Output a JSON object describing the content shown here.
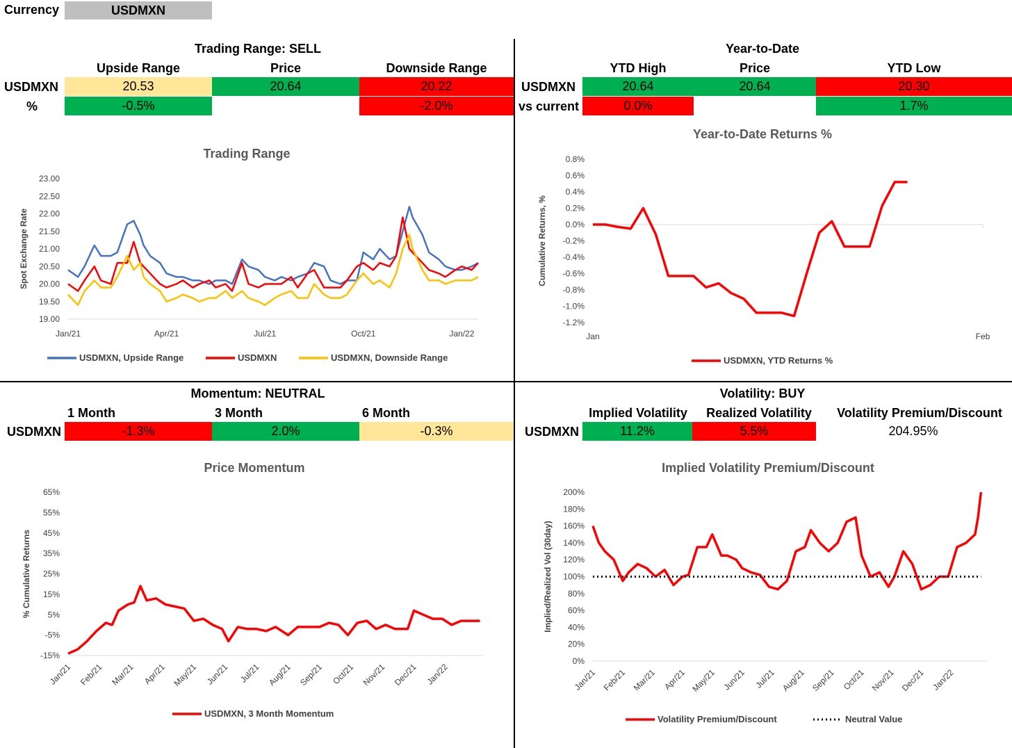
{
  "currency": {
    "label": "Currency",
    "value": "USDMXN"
  },
  "trading": {
    "title": "Trading Range: SELL",
    "headers": [
      "Upside Range",
      "Price",
      "Downside Range"
    ],
    "row_label": "USDMXN",
    "pct_label": "%",
    "values": [
      "20.53",
      "20.64",
      "20.22"
    ],
    "pct": [
      "-0.5%",
      "",
      "-2.0%"
    ]
  },
  "ytd": {
    "title": "Year-to-Date",
    "headers": [
      "YTD High",
      "Price",
      "YTD Low"
    ],
    "row_label": "USDMXN",
    "pct_label": "vs current",
    "values": [
      "20.64",
      "20.64",
      "20.30"
    ],
    "pct": [
      "0.0%",
      "",
      "1.7%"
    ]
  },
  "momentum": {
    "title": "Momentum: NEUTRAL",
    "headers": [
      "1 Month",
      "3 Month",
      "6 Month"
    ],
    "row_label": "USDMXN",
    "values": [
      "-1.3%",
      "2.0%",
      "-0.3%"
    ]
  },
  "volatility": {
    "title": "Volatility: BUY",
    "headers": [
      "Implied Volatility",
      "Realized Volatility",
      "Volatility Premium/Discount"
    ],
    "row_label": "USDMXN",
    "values": [
      "11.2%",
      "5.5%",
      "204.95%"
    ]
  },
  "colors": {
    "green": "#00b050",
    "red": "#ff0000",
    "yellow": "#ffe699",
    "blue": "#4472c4",
    "orange": "#ffc000"
  },
  "chart_data": [
    {
      "id": "trading_range",
      "type": "line",
      "title": "Trading Range",
      "ylabel": "Spot Exchange Rate",
      "ylim": [
        19.0,
        23.0
      ],
      "yticks": [
        "23.00",
        "22.50",
        "22.00",
        "21.50",
        "21.00",
        "20.50",
        "20.00",
        "19.50",
        "19.00"
      ],
      "xticks": [
        "Jan/21",
        "Apr/21",
        "Jul/21",
        "Oct/21",
        "Jan/22"
      ],
      "xrange": [
        0,
        12.5
      ],
      "tick_pos": [
        0,
        3,
        6,
        9,
        12
      ],
      "series": [
        {
          "name": "USDMXN, Upside Range",
          "color": "#4472c4",
          "x": [
            0,
            0.3,
            0.5,
            0.8,
            1.0,
            1.3,
            1.5,
            1.8,
            2.0,
            2.2,
            2.3,
            2.5,
            2.8,
            3.0,
            3.3,
            3.5,
            3.8,
            4.0,
            4.3,
            4.5,
            4.8,
            5.0,
            5.3,
            5.5,
            5.8,
            6.0,
            6.3,
            6.5,
            6.8,
            7.0,
            7.3,
            7.5,
            7.8,
            8.0,
            8.3,
            8.5,
            8.8,
            9.0,
            9.3,
            9.5,
            9.8,
            10.0,
            10.2,
            10.4,
            10.5,
            10.8,
            11.0,
            11.3,
            11.5,
            11.8,
            12.0,
            12.3,
            12.5
          ],
          "values": [
            20.4,
            20.2,
            20.5,
            21.1,
            20.8,
            20.8,
            20.9,
            21.7,
            21.8,
            21.4,
            21.1,
            20.8,
            20.6,
            20.3,
            20.2,
            20.2,
            20.1,
            20.1,
            20.0,
            20.1,
            20.1,
            20.0,
            20.7,
            20.5,
            20.4,
            20.2,
            20.1,
            20.2,
            20.1,
            20.2,
            20.3,
            20.6,
            20.5,
            20.1,
            20.0,
            20.1,
            20.1,
            20.9,
            20.7,
            21.0,
            20.7,
            20.8,
            21.5,
            22.2,
            21.9,
            21.4,
            20.9,
            20.7,
            20.5,
            20.4,
            20.4,
            20.5,
            20.6
          ]
        },
        {
          "name": "USDMXN",
          "color": "#ff0000",
          "x": [
            0,
            0.3,
            0.5,
            0.8,
            1.0,
            1.3,
            1.5,
            1.8,
            2.0,
            2.2,
            2.3,
            2.5,
            2.8,
            3.0,
            3.3,
            3.5,
            3.8,
            4.0,
            4.3,
            4.5,
            4.8,
            5.0,
            5.3,
            5.5,
            5.8,
            6.0,
            6.3,
            6.5,
            6.8,
            7.0,
            7.3,
            7.5,
            7.8,
            8.0,
            8.3,
            8.5,
            8.8,
            9.0,
            9.3,
            9.5,
            9.8,
            10.0,
            10.2,
            10.4,
            10.5,
            10.8,
            11.0,
            11.3,
            11.5,
            11.8,
            12.0,
            12.3,
            12.5
          ],
          "values": [
            20.0,
            19.8,
            20.1,
            20.5,
            20.1,
            20.0,
            20.6,
            20.6,
            21.2,
            20.6,
            20.5,
            20.3,
            20.0,
            19.9,
            20.0,
            20.1,
            19.9,
            20.0,
            20.1,
            19.9,
            20.0,
            19.8,
            20.6,
            20.0,
            19.9,
            20.0,
            20.0,
            20.0,
            20.2,
            19.9,
            20.3,
            20.4,
            19.9,
            19.9,
            19.9,
            20.1,
            20.5,
            20.6,
            20.4,
            20.6,
            20.5,
            20.8,
            21.9,
            21.0,
            20.9,
            20.6,
            20.4,
            20.3,
            20.2,
            20.4,
            20.5,
            20.4,
            20.6
          ]
        },
        {
          "name": "USDMXN, Downside Range",
          "color": "#ffc000",
          "x": [
            0,
            0.3,
            0.5,
            0.8,
            1.0,
            1.3,
            1.5,
            1.8,
            2.0,
            2.2,
            2.3,
            2.5,
            2.8,
            3.0,
            3.3,
            3.5,
            3.8,
            4.0,
            4.3,
            4.5,
            4.8,
            5.0,
            5.3,
            5.5,
            5.8,
            6.0,
            6.3,
            6.5,
            6.8,
            7.0,
            7.3,
            7.5,
            7.8,
            8.0,
            8.3,
            8.5,
            8.8,
            9.0,
            9.3,
            9.5,
            9.8,
            10.0,
            10.2,
            10.4,
            10.5,
            10.8,
            11.0,
            11.3,
            11.5,
            11.8,
            12.0,
            12.3,
            12.5
          ],
          "values": [
            19.7,
            19.4,
            19.8,
            20.1,
            19.9,
            19.9,
            20.2,
            20.8,
            20.4,
            20.6,
            20.2,
            20.0,
            19.8,
            19.5,
            19.6,
            19.7,
            19.6,
            19.5,
            19.6,
            19.6,
            19.8,
            19.6,
            19.8,
            19.6,
            19.5,
            19.4,
            19.6,
            19.7,
            19.8,
            19.6,
            19.6,
            20.0,
            19.7,
            19.6,
            19.6,
            19.7,
            20.1,
            20.3,
            20.0,
            20.1,
            19.9,
            20.3,
            21.0,
            21.4,
            21.0,
            20.4,
            20.1,
            20.1,
            20.0,
            20.1,
            20.1,
            20.1,
            20.2
          ]
        }
      ]
    },
    {
      "id": "ytd_returns",
      "type": "line",
      "title": "Year-to-Date Returns %",
      "ylabel": "Cumulative Returns, %",
      "ylim": [
        -1.2,
        0.8
      ],
      "yticks": [
        "0.8%",
        "0.6%",
        "0.4%",
        "0.2%",
        "0.0%",
        "-0.2%",
        "-0.4%",
        "-0.6%",
        "-0.8%",
        "-1.0%",
        "-1.2%"
      ],
      "xticks": [
        "Jan",
        "Feb"
      ],
      "xrange": [
        0,
        31
      ],
      "tick_pos": [
        0,
        31
      ],
      "series": [
        {
          "name": "USDMXN, YTD Returns %",
          "color": "#ff0000",
          "x": [
            0,
            1,
            2,
            3,
            4,
            5,
            6,
            7,
            8,
            9,
            10,
            11,
            12,
            13,
            14,
            15,
            16,
            17,
            18,
            19,
            20,
            21,
            22,
            23,
            24,
            25
          ],
          "values": [
            0.0,
            0.0,
            -0.03,
            -0.05,
            0.2,
            -0.12,
            -0.63,
            -0.63,
            -0.63,
            -0.77,
            -0.72,
            -0.84,
            -0.91,
            -1.08,
            -1.08,
            -1.08,
            -1.12,
            -0.6,
            -0.1,
            0.04,
            -0.27,
            -0.27,
            -0.27,
            0.23,
            0.52,
            0.52
          ]
        }
      ]
    },
    {
      "id": "price_momentum",
      "type": "line",
      "title": "Price Momentum",
      "ylabel": "% Cumulative Returns",
      "ylim": [
        -15,
        65
      ],
      "yticks": [
        "65%",
        "55%",
        "45%",
        "35%",
        "25%",
        "15%",
        "5%",
        "-5%",
        "-15%"
      ],
      "xticks": [
        "Jan/21",
        "Feb/21",
        "Mar/21",
        "Apr/21",
        "May/21",
        "Jun/21",
        "Jul/21",
        "Aug/21",
        "Sep/21",
        "Oct/21",
        "Nov/21",
        "Dec/21",
        "Jan/22"
      ],
      "xrange": [
        0,
        13.2
      ],
      "tick_pos": [
        0,
        1,
        2,
        3,
        4,
        5,
        6,
        7,
        8,
        9,
        10,
        11,
        12
      ],
      "series": [
        {
          "name": "USDMXN, 3 Month Momentum",
          "color": "#ff0000",
          "x": [
            0,
            0.3,
            0.6,
            0.9,
            1.2,
            1.4,
            1.6,
            1.9,
            2.1,
            2.3,
            2.5,
            2.8,
            3.1,
            3.4,
            3.7,
            4.0,
            4.3,
            4.6,
            4.9,
            5.1,
            5.4,
            5.7,
            6.0,
            6.3,
            6.6,
            7.0,
            7.3,
            7.6,
            8.0,
            8.3,
            8.6,
            8.9,
            9.2,
            9.5,
            9.8,
            10.1,
            10.4,
            10.8,
            11.0,
            11.3,
            11.6,
            11.9,
            12.2,
            12.5,
            13.1
          ],
          "values": [
            -14,
            -12,
            -8,
            -3,
            1,
            0,
            7,
            10,
            11,
            19,
            12,
            13,
            10,
            9,
            8,
            2,
            3,
            0,
            -2,
            -8,
            -1,
            -2,
            -2,
            -3,
            -1,
            -5,
            -1,
            -1,
            -1,
            1,
            0,
            -5,
            1,
            2,
            -2,
            0,
            -2,
            -2,
            7,
            5,
            3,
            3,
            0,
            2,
            2
          ]
        }
      ]
    },
    {
      "id": "iv_premium",
      "type": "line",
      "title": "Implied Volatility Premium/Discount",
      "ylabel": "Implied/Realized Vol  (30day)",
      "ylim": [
        0,
        200
      ],
      "yticks": [
        "200%",
        "180%",
        "160%",
        "140%",
        "120%",
        "100%",
        "80%",
        "60%",
        "40%",
        "20%",
        "0%"
      ],
      "xticks": [
        "Jan/21",
        "Feb/21",
        "Mar/21",
        "Apr/21",
        "May/21",
        "Jun/21",
        "Jul/21",
        "Aug/21",
        "Sep/21",
        "Oct/21",
        "Nov/21",
        "Dec/21",
        "Jan/22"
      ],
      "xrange": [
        0,
        13.2
      ],
      "tick_pos": [
        0,
        1,
        2,
        3,
        4,
        5,
        6,
        7,
        8,
        9,
        10,
        11,
        12
      ],
      "series": [
        {
          "name": "Volatility Premium/Discount",
          "color": "#ff0000",
          "x": [
            0,
            0.2,
            0.4,
            0.7,
            1.0,
            1.2,
            1.5,
            1.8,
            2.1,
            2.4,
            2.7,
            3.0,
            3.2,
            3.5,
            3.8,
            4.0,
            4.3,
            4.5,
            4.8,
            5.0,
            5.3,
            5.6,
            5.9,
            6.2,
            6.5,
            6.8,
            7.1,
            7.3,
            7.6,
            7.9,
            8.2,
            8.5,
            8.8,
            9.0,
            9.3,
            9.6,
            9.9,
            10.1,
            10.4,
            10.7,
            11.0,
            11.3,
            11.6,
            11.9,
            12.2,
            12.5,
            12.8,
            12.9,
            13.0
          ],
          "values": [
            160,
            140,
            130,
            120,
            95,
            105,
            115,
            110,
            100,
            108,
            90,
            100,
            102,
            135,
            135,
            150,
            125,
            125,
            120,
            110,
            105,
            102,
            88,
            85,
            95,
            130,
            135,
            155,
            140,
            130,
            140,
            165,
            170,
            125,
            100,
            105,
            88,
            100,
            130,
            115,
            85,
            90,
            100,
            100,
            135,
            140,
            150,
            170,
            200
          ]
        },
        {
          "name": "Neutral Value",
          "color": "#000000",
          "dotted": true,
          "x": [
            0,
            13.0
          ],
          "values": [
            100,
            100
          ]
        }
      ]
    }
  ]
}
